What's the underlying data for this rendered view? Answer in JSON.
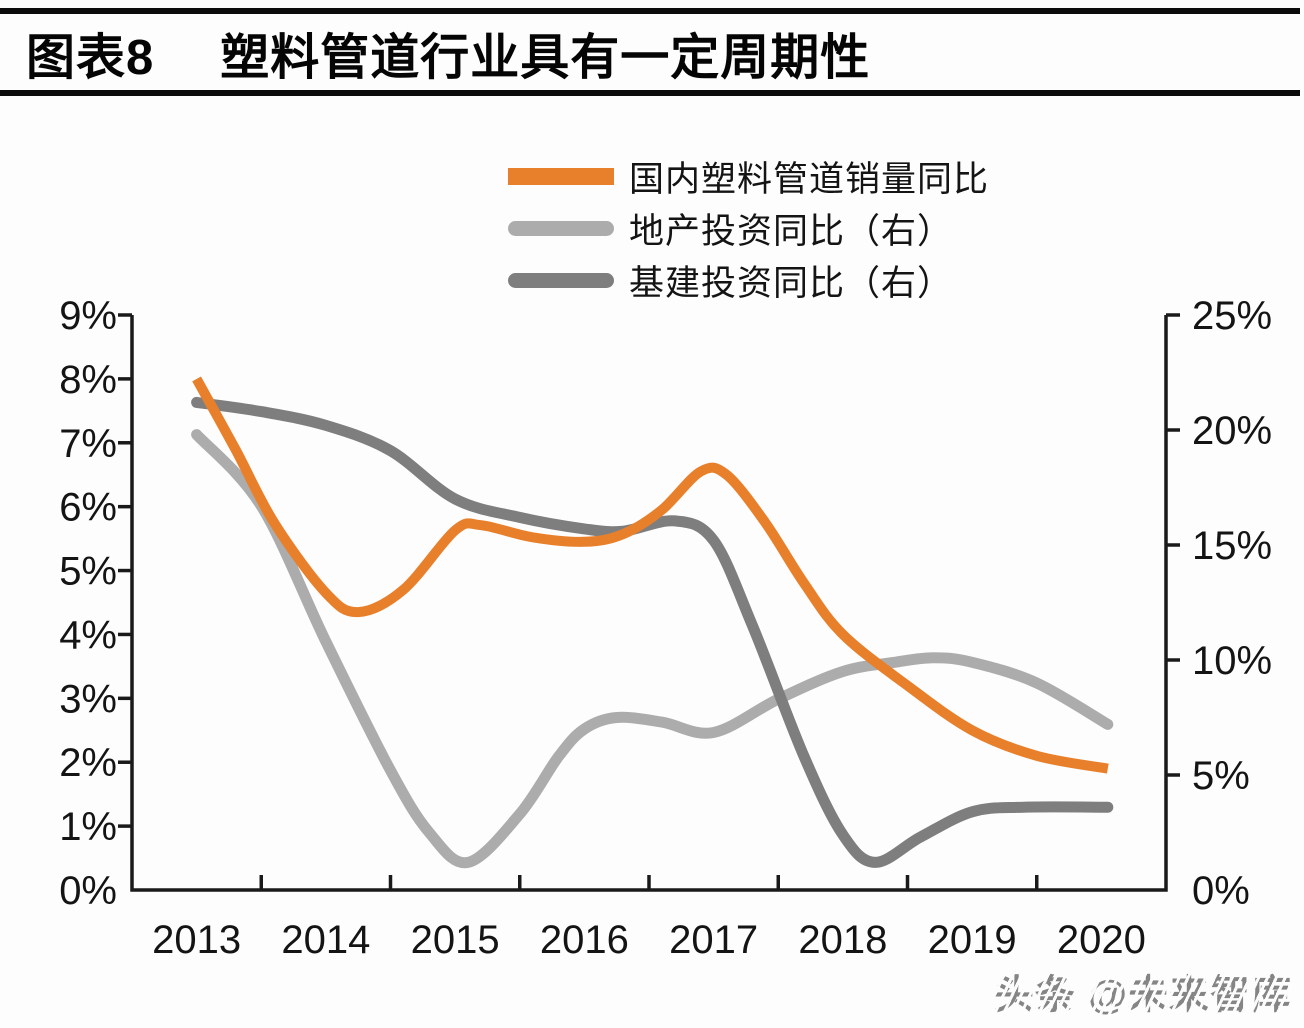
{
  "header": {
    "figure_label": "图表8",
    "title": "塑料管道行业具有一定周期性"
  },
  "watermark": "头条 @未来智库",
  "colors": {
    "accent_orange": "#E8802B",
    "light_gray": "#ACACAC",
    "dark_gray": "#7E7E7E",
    "axis": "#1A1A1A",
    "text": "#141414"
  },
  "chart_data": {
    "type": "line",
    "title": "塑料管道行业具有一定周期性",
    "x_years": [
      "2013",
      "2014",
      "2015",
      "2016",
      "2017",
      "2018",
      "2019",
      "2020"
    ],
    "left_axis": {
      "min": 0,
      "max": 9,
      "step": 1,
      "unit": "%",
      "tick_labels": [
        "0%",
        "1%",
        "2%",
        "3%",
        "4%",
        "5%",
        "6%",
        "7%",
        "8%",
        "9%"
      ]
    },
    "right_axis": {
      "min": 0,
      "max": 25,
      "step": 5,
      "unit": "%",
      "tick_labels": [
        "0%",
        "5%",
        "10%",
        "15%",
        "20%",
        "25%"
      ]
    },
    "legend_position": "top-center",
    "grid": false,
    "series": [
      {
        "id": "pipe_sales",
        "name": "国内塑料管道销量同比",
        "axis": "left",
        "color": "#E8802B",
        "stroke_width": 10,
        "linecap": "butt",
        "z": 2,
        "annual_values": [
          8.0,
          4.7,
          5.6,
          5.5,
          6.5,
          4.0,
          2.5,
          1.9
        ],
        "path_points": [
          [
            2013.0,
            8.0
          ],
          [
            2013.3,
            6.9
          ],
          [
            2013.6,
            5.75
          ],
          [
            2014.0,
            4.65
          ],
          [
            2014.25,
            4.35
          ],
          [
            2014.6,
            4.7
          ],
          [
            2015.0,
            5.63
          ],
          [
            2015.2,
            5.71
          ],
          [
            2015.6,
            5.52
          ],
          [
            2016.0,
            5.45
          ],
          [
            2016.3,
            5.57
          ],
          [
            2016.6,
            5.95
          ],
          [
            2016.9,
            6.55
          ],
          [
            2017.1,
            6.5
          ],
          [
            2017.4,
            5.75
          ],
          [
            2017.7,
            4.8
          ],
          [
            2018.0,
            4.0
          ],
          [
            2018.5,
            3.2
          ],
          [
            2019.0,
            2.5
          ],
          [
            2019.5,
            2.1
          ],
          [
            2020.05,
            1.9
          ]
        ]
      },
      {
        "id": "real_estate_investment",
        "name": "地产投资同比（右）",
        "axis": "right",
        "color": "#ACACAC",
        "stroke_width": 11,
        "linecap": "round",
        "z": 0,
        "annual_values": [
          19.8,
          10.8,
          1.2,
          7.0,
          6.9,
          9.5,
          9.9,
          7.2
        ],
        "path_points": [
          [
            2013.0,
            19.8
          ],
          [
            2013.5,
            16.7
          ],
          [
            2014.0,
            10.8
          ],
          [
            2014.5,
            5.2
          ],
          [
            2014.8,
            2.5
          ],
          [
            2015.1,
            1.2
          ],
          [
            2015.5,
            3.3
          ],
          [
            2015.8,
            5.8
          ],
          [
            2016.0,
            7.0
          ],
          [
            2016.25,
            7.5
          ],
          [
            2016.6,
            7.3
          ],
          [
            2017.0,
            6.85
          ],
          [
            2017.5,
            8.3
          ],
          [
            2018.0,
            9.5
          ],
          [
            2018.4,
            9.9
          ],
          [
            2018.7,
            10.1
          ],
          [
            2019.0,
            9.9
          ],
          [
            2019.5,
            9.0
          ],
          [
            2020.05,
            7.2
          ]
        ]
      },
      {
        "id": "infrastructure_investment",
        "name": "基建投资同比（右）",
        "axis": "right",
        "color": "#7E7E7E",
        "stroke_width": 11,
        "linecap": "round",
        "z": 1,
        "annual_values": [
          21.2,
          20.2,
          17.0,
          15.7,
          15.2,
          2.4,
          3.4,
          3.6
        ],
        "path_points": [
          [
            2013.0,
            21.2
          ],
          [
            2013.5,
            20.8
          ],
          [
            2014.0,
            20.2
          ],
          [
            2014.5,
            19.1
          ],
          [
            2015.0,
            17.0
          ],
          [
            2015.5,
            16.2
          ],
          [
            2016.0,
            15.7
          ],
          [
            2016.3,
            15.6
          ],
          [
            2016.7,
            16.05
          ],
          [
            2017.0,
            15.2
          ],
          [
            2017.3,
            11.5
          ],
          [
            2017.7,
            5.8
          ],
          [
            2018.0,
            2.4
          ],
          [
            2018.25,
            1.2
          ],
          [
            2018.6,
            2.3
          ],
          [
            2019.0,
            3.4
          ],
          [
            2019.4,
            3.6
          ],
          [
            2020.05,
            3.6
          ]
        ]
      }
    ]
  }
}
